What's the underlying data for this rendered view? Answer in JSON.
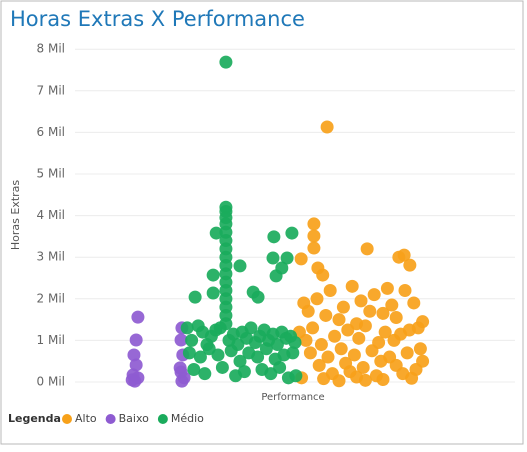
{
  "chart_data": {
    "type": "scatter",
    "title": "Horas Extras X Performance",
    "x_label": "Performance",
    "y_label": "Horas Extras",
    "legend_title": "Legenda",
    "legend_position": "bottom-left",
    "grid": true,
    "xlim": [
      0,
      100
    ],
    "ylim": [
      0,
      8200
    ],
    "yticks": [
      {
        "value": 0,
        "label": "0 Mil"
      },
      {
        "value": 1000,
        "label": "1 Mil"
      },
      {
        "value": 2000,
        "label": "2 Mil"
      },
      {
        "value": 3000,
        "label": "3 Mil"
      },
      {
        "value": 4000,
        "label": "4 Mil"
      },
      {
        "value": 5000,
        "label": "5 Mil"
      },
      {
        "value": 6000,
        "label": "6 Mil"
      },
      {
        "value": 7000,
        "label": "7 Mil"
      },
      {
        "value": 8000,
        "label": "8 Mil"
      }
    ],
    "series": [
      {
        "name": "Alto",
        "color": "#f7a11a",
        "x": [
          57.3,
          54.3,
          54.3,
          54.3,
          51.4,
          55.2,
          56.3,
          66.4,
          73.6,
          74.8,
          76.1,
          52,
          53,
          55,
          57,
          58,
          60,
          61,
          63,
          64,
          65,
          67,
          68,
          70,
          71,
          72,
          73,
          75,
          77,
          78,
          79,
          51,
          52.5,
          54,
          56,
          59,
          62,
          64.5,
          66,
          69,
          70.5,
          72.5,
          74,
          76,
          78.5,
          53.5,
          57.5,
          60.5,
          63.5,
          67.5,
          71.5,
          75.5,
          79,
          55.5,
          61.5,
          65.5,
          69.5,
          73,
          77.5,
          58.5,
          62.5,
          68.5,
          74.5,
          51.5,
          56.5,
          64,
          70,
          76.5,
          60,
          66
        ],
        "y": [
          6130,
          3800,
          3510,
          3220,
          2960,
          2740,
          2570,
          3200,
          3000,
          3050,
          2810,
          1900,
          1700,
          2000,
          1600,
          2200,
          1500,
          1800,
          2300,
          1400,
          1950,
          1700,
          2100,
          1650,
          2250,
          1850,
          1550,
          2200,
          1900,
          1300,
          1450,
          1200,
          1000,
          1300,
          900,
          1100,
          1250,
          1050,
          1350,
          950,
          1200,
          1000,
          1150,
          1250,
          800,
          700,
          600,
          800,
          650,
          750,
          600,
          700,
          500,
          400,
          450,
          350,
          500,
          400,
          300,
          200,
          250,
          150,
          200,
          100,
          80,
          120,
          60,
          90,
          30,
          40
        ]
      },
      {
        "name": "Baixo",
        "color": "#8e5bd1",
        "x": [
          14.3,
          13.9,
          13.4,
          13.9,
          13.2,
          14.3,
          13.6,
          13.0,
          24.3,
          24.1,
          24.5,
          23.9,
          24.8,
          24.3,
          24.1
        ],
        "y": [
          1560,
          1010,
          650,
          410,
          170,
          100,
          20,
          50,
          1300,
          1010,
          650,
          340,
          100,
          20,
          240
        ]
      },
      {
        "name": "Médio",
        "color": "#1aab5c",
        "x": [
          34.3,
          34.3,
          34.3,
          34.3,
          34.3,
          34.3,
          34.3,
          34.3,
          34.3,
          34.3,
          34.3,
          34.3,
          34.3,
          34.3,
          34.3,
          34.3,
          34.3,
          32.1,
          45.2,
          49.3,
          48.2,
          45,
          37.5,
          31.4,
          27.3,
          31.4,
          40.5,
          41.6,
          45.7,
          47,
          25.5,
          26.5,
          28,
          29,
          30,
          31,
          32,
          33,
          35,
          36,
          37,
          38,
          39,
          40,
          41,
          42,
          43,
          44,
          45,
          46,
          47,
          48,
          49,
          50,
          26,
          28.5,
          30.5,
          32.5,
          35.5,
          37.5,
          39.5,
          41.5,
          43.5,
          45.5,
          47.5,
          49.5,
          27,
          29.5,
          33.5,
          36.5,
          38.5,
          42.5,
          44.5,
          46.5,
          48.5,
          50.2
        ],
        "y": [
          7690,
          4200,
          4100,
          3950,
          3800,
          3600,
          3400,
          3200,
          3000,
          2800,
          2600,
          2400,
          2200,
          2000,
          1800,
          1600,
          1400,
          3580,
          3490,
          3580,
          2980,
          2980,
          2790,
          2570,
          2040,
          2140,
          2160,
          2040,
          2550,
          2740,
          1300,
          1000,
          1350,
          1200,
          900,
          1100,
          1250,
          1300,
          1000,
          1150,
          900,
          1200,
          1050,
          1300,
          950,
          1100,
          1250,
          1000,
          1150,
          900,
          1200,
          1050,
          1100,
          950,
          700,
          600,
          800,
          650,
          750,
          500,
          700,
          600,
          800,
          550,
          650,
          700,
          300,
          200,
          350,
          150,
          250,
          300,
          200,
          350,
          100,
          150
        ]
      }
    ]
  }
}
